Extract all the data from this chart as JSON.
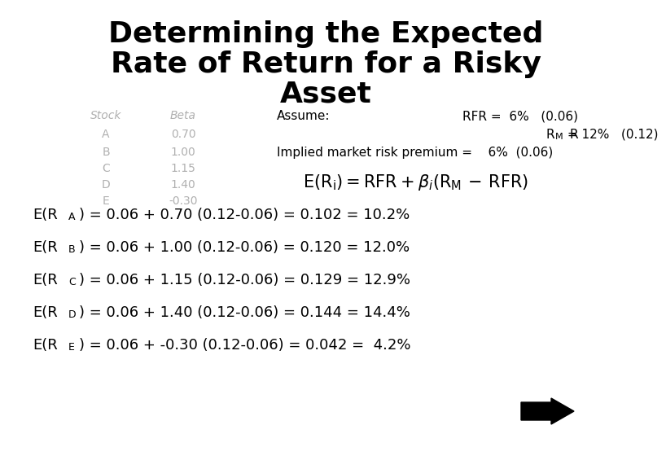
{
  "title_line1": "Determining the Expected",
  "title_line2": "Rate of Return for a Risky",
  "title_line3": "Asset",
  "background_color": "#ffffff",
  "text_color": "#000000",
  "gray_color": "#b0b0b0",
  "table_header": [
    "Stock",
    "Beta"
  ],
  "table_rows": [
    [
      "A",
      "0.70"
    ],
    [
      "B",
      "1.00"
    ],
    [
      "C",
      "1.15"
    ],
    [
      "D",
      "1.40"
    ],
    [
      "E",
      "-0.30"
    ]
  ],
  "assume_label": "Assume:",
  "rfr_text": "RFR =  6%   (0.06)",
  "rm_prefix": "R",
  "rm_sub": "M",
  "rm_suffix": " = 12%   (0.12)",
  "implied_text": "Implied market risk premium =    6%  (0.06)",
  "eq_prefixes": [
    "E(R",
    "E(R",
    "E(R",
    "E(R",
    "E(R"
  ],
  "eq_subs": [
    "A",
    "B",
    "C",
    "D",
    "E"
  ],
  "eq_suffixes": [
    ") = 0.06 + 0.70 (0.12-0.06) = 0.102 = 10.2%",
    ") = 0.06 + 1.00 (0.12-0.06) = 0.120 = 12.0%",
    ") = 0.06 + 1.15 (0.12-0.06) = 0.129 = 12.9%",
    ") = 0.06 + 1.40 (0.12-0.06) = 0.144 = 14.4%",
    ") = 0.06 + -0.30 (0.12-0.06) = 0.042 =  4.2%"
  ]
}
